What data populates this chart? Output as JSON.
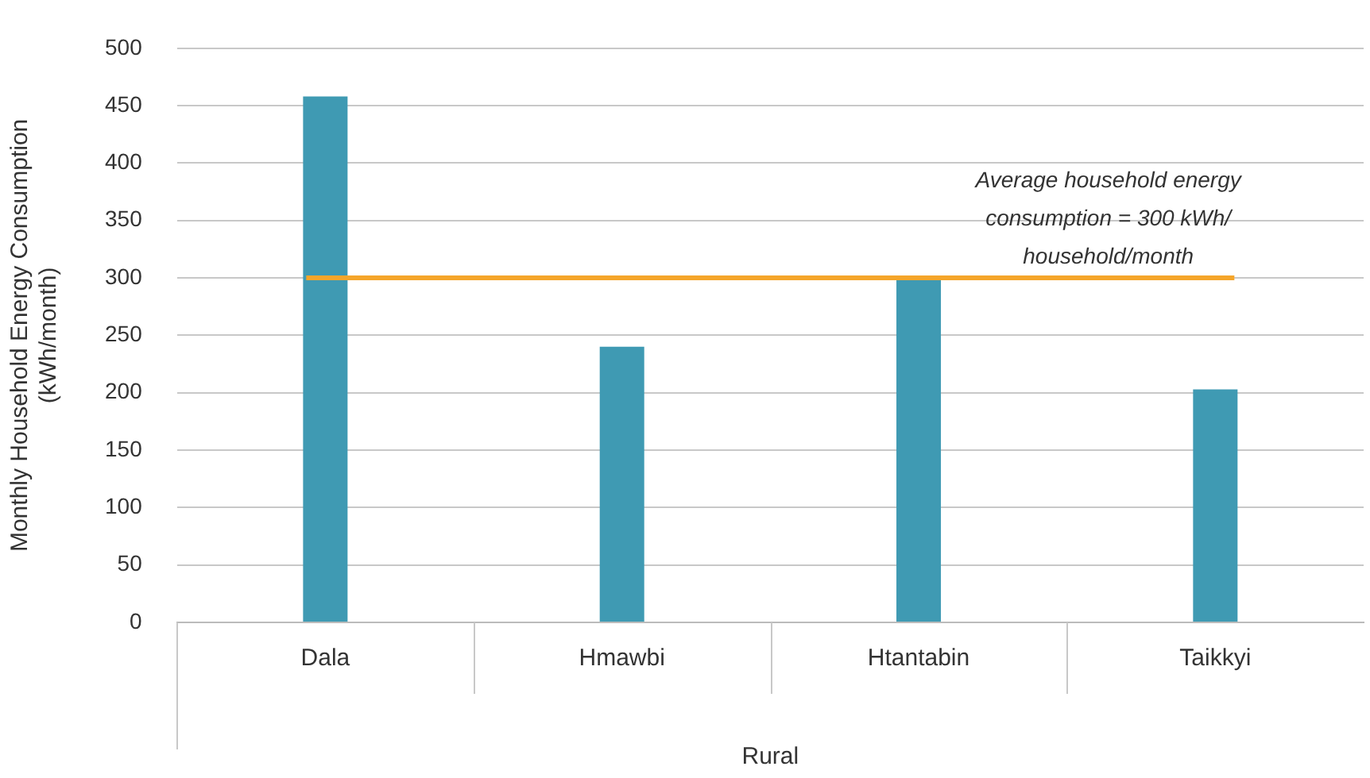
{
  "chart_data": {
    "type": "bar",
    "categories": [
      "Dala",
      "Hmawbi",
      "Htantabin",
      "Taikkyi"
    ],
    "values": [
      458,
      240,
      299,
      203
    ],
    "color": "#3f9ab3",
    "ylabel": "Monthly Household Energy Consumption\n(kWh/month)",
    "xlabel": "Rural",
    "ylim": [
      0,
      500
    ],
    "yticks": [
      0,
      50,
      100,
      150,
      200,
      250,
      300,
      350,
      400,
      450,
      500
    ],
    "grid": "y",
    "legend": false,
    "ref_lines": [
      {
        "axis": "y",
        "value": 300,
        "label": "Average household energy consumption = 300 kWh/ household/month",
        "color": "#f5a52a"
      }
    ]
  }
}
